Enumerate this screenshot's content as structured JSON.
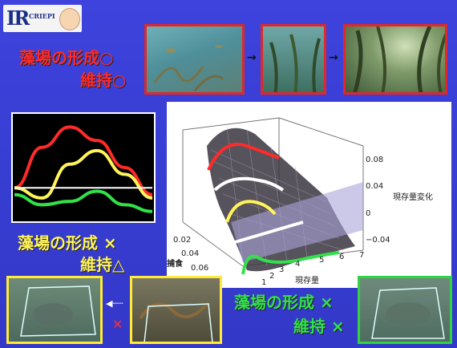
{
  "logo": {
    "text_ir": "IR",
    "text_org": "CRIEPI"
  },
  "top_caption": {
    "line1": "藻場の形成○",
    "line2": "維持○"
  },
  "left_caption": {
    "line1": "藻場の形成 ×",
    "line2": "維持△"
  },
  "right_caption": {
    "line1": "藻場の形成 ×",
    "line2": "維持 ×"
  },
  "arrows": {
    "right": "→",
    "dotted": "◀┄┄",
    "cross": "✕"
  },
  "colors": {
    "background": "#3a3fd6",
    "red": "#ff2a2a",
    "yellow": "#fff45a",
    "green": "#32e14a",
    "white": "#ffffff"
  },
  "chart_data": [
    {
      "type": "line",
      "title": "",
      "series": [
        {
          "color": "#ff2a2a",
          "values": [
            0.0,
            0.6,
            0.9,
            0.7,
            0.3,
            -0.1
          ]
        },
        {
          "color": "#fff45a",
          "values": [
            0.0,
            -0.15,
            0.35,
            0.55,
            0.2,
            -0.15
          ]
        },
        {
          "color": "#32e14a",
          "values": [
            -0.1,
            -0.25,
            -0.2,
            -0.05,
            -0.25,
            -0.35
          ]
        },
        {
          "color": "#ffffff",
          "values": [
            0.0,
            0.0,
            0.0,
            0.0,
            0.0,
            0.0
          ]
        }
      ],
      "grid": false
    },
    {
      "type": "surface",
      "zlabel": "現存量変化",
      "zticks": [
        "0.08",
        "0.04",
        "0",
        "−0.04"
      ],
      "xlabel": "捕食",
      "xticks": [
        "0.02",
        "0.04",
        "0.06"
      ],
      "ylabel": "現存量",
      "yticks": [
        "1",
        "2",
        "3",
        "4",
        "5",
        "6",
        "7"
      ]
    }
  ]
}
